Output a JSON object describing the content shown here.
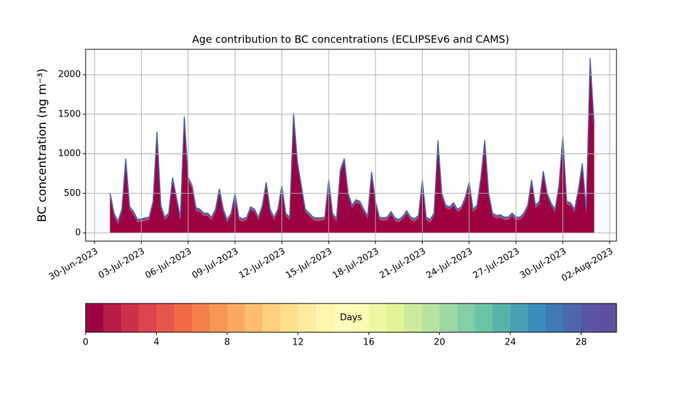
{
  "chart_data": {
    "type": "stacked_area",
    "title": "Age contribution to BC concentrations (ECLIPSEv6 and CAMS)",
    "ylabel": "BC concentration (ng m⁻³)",
    "x": [
      1,
      1.25,
      1.5,
      1.75,
      2,
      2.25,
      2.5,
      2.75,
      3,
      3.25,
      3.5,
      3.75,
      4,
      4.25,
      4.5,
      4.75,
      5,
      5.25,
      5.5,
      5.75,
      6,
      6.25,
      6.5,
      6.75,
      7,
      7.25,
      7.5,
      7.75,
      8,
      8.25,
      8.5,
      8.75,
      9,
      9.25,
      9.5,
      9.75,
      10,
      10.25,
      10.5,
      10.75,
      11,
      11.25,
      11.5,
      11.75,
      12,
      12.25,
      12.5,
      12.75,
      13,
      13.25,
      13.5,
      13.75,
      14,
      14.25,
      14.5,
      14.75,
      15,
      15.25,
      15.5,
      15.75,
      16,
      16.25,
      16.5,
      16.75,
      17,
      17.25,
      17.5,
      17.75,
      18,
      18.25,
      18.5,
      18.75,
      19,
      19.25,
      19.5,
      19.75,
      20,
      20.25,
      20.5,
      20.75,
      21,
      21.25,
      21.5,
      21.75,
      22,
      22.25,
      22.5,
      22.75,
      23,
      23.25,
      23.5,
      23.75,
      24,
      24.25,
      24.5,
      24.75,
      25,
      25.25,
      25.5,
      25.75,
      26,
      26.25,
      26.5,
      26.75,
      27,
      27.25,
      27.5,
      27.75,
      28,
      28.25,
      28.5,
      28.75,
      29,
      29.25,
      29.5,
      29.75,
      30,
      30.25,
      30.5,
      30.75,
      31,
      31.25,
      31.5,
      31.75,
      32
    ],
    "series": [
      {
        "color": "#9e0142",
        "values": [
          465,
          215,
          115,
          265,
          905,
          295,
          235,
          135,
          145,
          155,
          165,
          365,
          1245,
          315,
          165,
          215,
          665,
          415,
          165,
          1435,
          665,
          565,
          285,
          265,
          215,
          215,
          165,
          265,
          525,
          265,
          135,
          215,
          465,
          165,
          145,
          165,
          295,
          265,
          165,
          315,
          605,
          265,
          165,
          265,
          565,
          215,
          165,
          1475,
          865,
          565,
          265,
          215,
          165,
          155,
          155,
          165,
          635,
          215,
          145,
          765,
          905,
          465,
          315,
          385,
          365,
          265,
          185,
          735,
          365,
          165,
          155,
          165,
          235,
          155,
          135,
          175,
          245,
          165,
          145,
          185,
          635,
          165,
          135,
          215,
          1135,
          465,
          315,
          295,
          345,
          265,
          295,
          415,
          605,
          265,
          315,
          665,
          1135,
          465,
          215,
          185,
          195,
          165,
          165,
          215,
          165,
          165,
          215,
          315,
          635,
          315,
          365,
          745,
          465,
          345,
          265,
          565,
          1185,
          365,
          345,
          265,
          515,
          845,
          265,
          2175,
          1365
        ]
      },
      {
        "color": "#da444d",
        "values": [
          20,
          20,
          20,
          20,
          20,
          20,
          20,
          20,
          20,
          20,
          20,
          20,
          20,
          20,
          20,
          20,
          20,
          20,
          20,
          20,
          20,
          20,
          20,
          20,
          20,
          20,
          20,
          20,
          20,
          20,
          20,
          20,
          20,
          20,
          20,
          20,
          20,
          20,
          20,
          20,
          20,
          20,
          20,
          20,
          20,
          20,
          20,
          20,
          20,
          20,
          20,
          20,
          20,
          20,
          20,
          20,
          20,
          20,
          20,
          20,
          20,
          20,
          20,
          20,
          20,
          20,
          20,
          20,
          20,
          20,
          20,
          20,
          20,
          20,
          20,
          20,
          20,
          20,
          20,
          20,
          20,
          20,
          20,
          20,
          20,
          20,
          20,
          20,
          20,
          20,
          20,
          20,
          20,
          20,
          20,
          20,
          20,
          20,
          20,
          20,
          20,
          20,
          20,
          20,
          20,
          20,
          20,
          20,
          20,
          20,
          20,
          20,
          20,
          20,
          20,
          20,
          20,
          20,
          20,
          20,
          20,
          20,
          20,
          20,
          20
        ]
      },
      {
        "color": "#4d66ae",
        "values": [
          15,
          15,
          15,
          15,
          15,
          15,
          15,
          15,
          15,
          15,
          15,
          15,
          15,
          15,
          15,
          15,
          15,
          15,
          15,
          15,
          15,
          15,
          15,
          15,
          15,
          15,
          15,
          15,
          15,
          15,
          15,
          15,
          15,
          15,
          15,
          15,
          15,
          15,
          15,
          15,
          15,
          15,
          15,
          15,
          15,
          15,
          15,
          15,
          15,
          15,
          15,
          15,
          15,
          15,
          15,
          15,
          15,
          15,
          15,
          15,
          15,
          15,
          15,
          15,
          15,
          15,
          15,
          15,
          15,
          15,
          15,
          15,
          15,
          15,
          15,
          15,
          15,
          15,
          15,
          15,
          15,
          15,
          15,
          15,
          15,
          15,
          15,
          15,
          15,
          15,
          15,
          15,
          15,
          15,
          15,
          15,
          15,
          15,
          15,
          15,
          15,
          15,
          15,
          15,
          15,
          15,
          15,
          15,
          15,
          15,
          15,
          15,
          15,
          15,
          15,
          15,
          15,
          15,
          15,
          15,
          15,
          15,
          15,
          15,
          15
        ]
      }
    ],
    "xlim": [
      -0.57,
      33.44
    ],
    "xticks": [
      {
        "value": 0,
        "label": "30-Jun-2023"
      },
      {
        "value": 3,
        "label": "03-Jul-2023"
      },
      {
        "value": 6,
        "label": "06-Jul-2023"
      },
      {
        "value": 9,
        "label": "09-Jul-2023"
      },
      {
        "value": 12,
        "label": "12-Jul-2023"
      },
      {
        "value": 15,
        "label": "15-Jul-2023"
      },
      {
        "value": 18,
        "label": "18-Jul-2023"
      },
      {
        "value": 21,
        "label": "21-Jul-2023"
      },
      {
        "value": 24,
        "label": "24-Jul-2023"
      },
      {
        "value": 27,
        "label": "27-Jul-2023"
      },
      {
        "value": 30,
        "label": "30-Jul-2023"
      },
      {
        "value": 33,
        "label": "02-Aug-2023"
      }
    ],
    "ylim": [
      -104,
      2321
    ],
    "yticks": [
      0,
      500,
      1000,
      1500,
      2000
    ],
    "grid": true,
    "colorbar": {
      "label": "Days",
      "lim": [
        0,
        30
      ],
      "ticks": [
        0,
        4,
        8,
        12,
        16,
        20,
        24,
        28
      ],
      "colors": [
        "#9e0142",
        "#b41c47",
        "#c9314c",
        "#da444d",
        "#e55749",
        "#ef6a45",
        "#f67e4b",
        "#f99555",
        "#fcaa5f",
        "#fdbe6e",
        "#fed07f",
        "#fee08b",
        "#feeb9d",
        "#fff5ae",
        "#fffdbc",
        "#f8fcb4",
        "#eef8a3",
        "#e2f397",
        "#cdeb9d",
        "#b7e2a1",
        "#9fd8a4",
        "#86cea4",
        "#6dc4a5",
        "#58b4aa",
        "#4aa0b3",
        "#3b8cbd",
        "#3f79b7",
        "#4d66ae",
        "#5a56a5",
        "#5e4fa2"
      ]
    }
  }
}
